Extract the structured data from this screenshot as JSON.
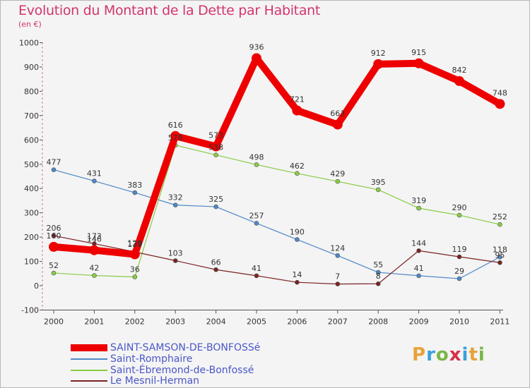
{
  "header": {
    "title": "Evolution du Montant de la Dette par Habitant",
    "subtitle": "(en €)"
  },
  "brand": {
    "logo_text": "Proxiti"
  },
  "chart_data": {
    "type": "line",
    "title": "Evolution du Montant de la Dette par Habitant",
    "subtitle": "(en €)",
    "xlabel": "",
    "ylabel": "",
    "x": [
      "2000",
      "2001",
      "2002",
      "2003",
      "2004",
      "2005",
      "2006",
      "2007",
      "2008",
      "2009",
      "2010",
      "2011"
    ],
    "ylim": [
      -100,
      1000
    ],
    "yticks": [
      -100,
      0,
      100,
      200,
      300,
      400,
      500,
      600,
      700,
      800,
      900,
      1000
    ],
    "grid": false,
    "legend_position": "bottom-left",
    "series": [
      {
        "name": "SAINT-SAMSON-DE-BONFOSSé",
        "color": "#ee0000",
        "values": [
          160,
          146,
          129,
          616,
          573,
          936,
          721,
          663,
          912,
          915,
          842,
          748
        ]
      },
      {
        "name": "Saint-Romphaire",
        "color": "#4f88c6",
        "values": [
          477,
          431,
          383,
          332,
          325,
          257,
          190,
          124,
          55,
          41,
          29,
          118
        ]
      },
      {
        "name": "Saint-Ébremond-de-Bonfossé",
        "color": "#88cc44",
        "values": [
          52,
          42,
          36,
          578,
          538,
          498,
          462,
          429,
          395,
          319,
          290,
          252
        ]
      },
      {
        "name": "Le Mesnil-Herman",
        "color": "#7a2222",
        "values": [
          206,
          173,
          139,
          103,
          66,
          41,
          14,
          7,
          8,
          144,
          119,
          95
        ]
      }
    ]
  }
}
